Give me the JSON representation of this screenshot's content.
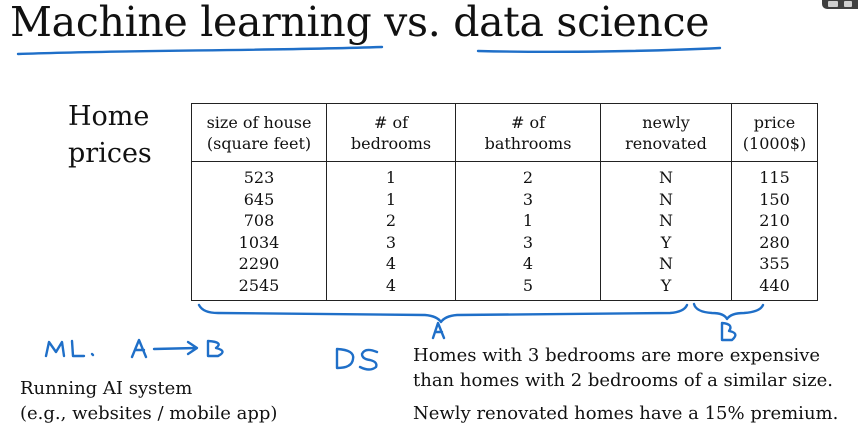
{
  "slide": {
    "title": "Machine learning vs. data science",
    "home_prices_line1": "Home",
    "home_prices_line2": "prices"
  },
  "table": {
    "headers": [
      [
        "size of house",
        "(square feet)"
      ],
      [
        "# of",
        "bedrooms"
      ],
      [
        "# of",
        "bathrooms"
      ],
      [
        "newly",
        "renovated"
      ],
      [
        "price",
        "(1000$)"
      ]
    ],
    "rows": [
      [
        "523",
        "1",
        "2",
        "N",
        "115"
      ],
      [
        "645",
        "1",
        "3",
        "N",
        "150"
      ],
      [
        "708",
        "2",
        "1",
        "N",
        "210"
      ],
      [
        "1034",
        "3",
        "3",
        "Y",
        "280"
      ],
      [
        "2290",
        "4",
        "4",
        "N",
        "355"
      ],
      [
        "2545",
        "4",
        "5",
        "Y",
        "440"
      ]
    ]
  },
  "notes": {
    "ml_desc_line1": "Running AI system",
    "ml_desc_line2": "(e.g., websites / mobile app)",
    "ds_insight1_line1": "Homes with 3 bedrooms are more expensive",
    "ds_insight1_line2": "than homes with 2 bedrooms of a similar size.",
    "ds_insight2": "Newly renovated homes have a 15% premium."
  },
  "ink_color": "#1f6fc8"
}
